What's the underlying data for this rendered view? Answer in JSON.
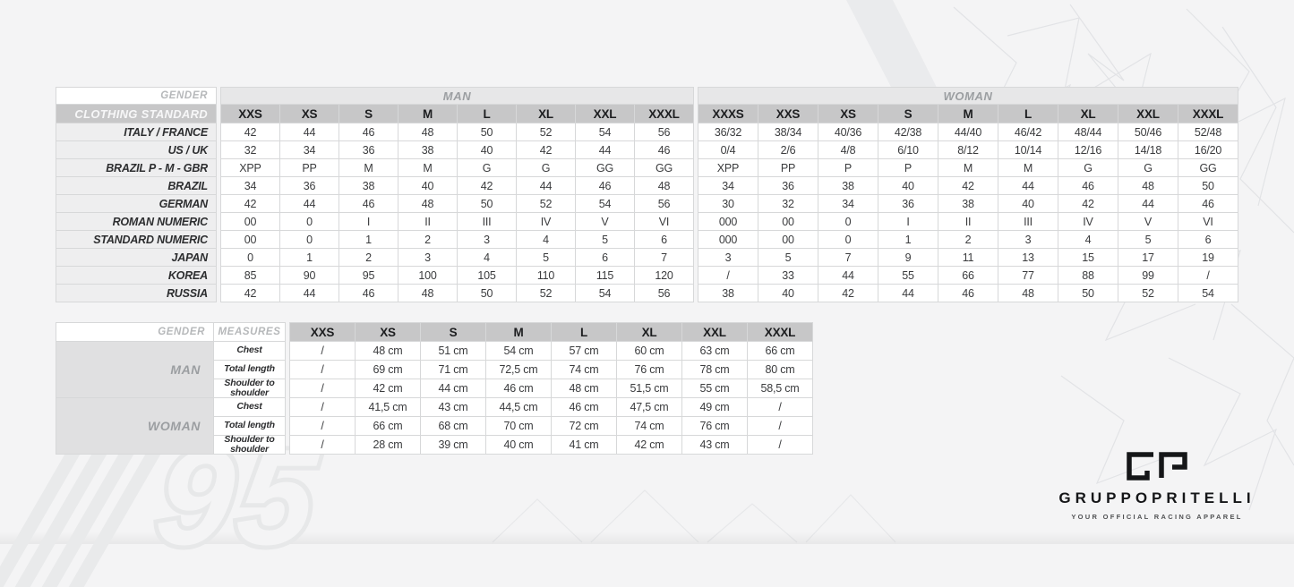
{
  "size_chart": {
    "gender_label": "GENDER",
    "standard_label": "CLOTHING STANDARD",
    "man": {
      "label": "MAN",
      "sizes": [
        "XXS",
        "XS",
        "S",
        "M",
        "L",
        "XL",
        "XXL",
        "XXXL"
      ]
    },
    "woman": {
      "label": "WOMAN",
      "sizes": [
        "XXXS",
        "XXS",
        "XS",
        "S",
        "M",
        "L",
        "XL",
        "XXL",
        "XXXL"
      ]
    },
    "rows": [
      {
        "label": "ITALY / FRANCE",
        "man": [
          "42",
          "44",
          "46",
          "48",
          "50",
          "52",
          "54",
          "56"
        ],
        "woman": [
          "36/32",
          "38/34",
          "40/36",
          "42/38",
          "44/40",
          "46/42",
          "48/44",
          "50/46",
          "52/48"
        ]
      },
      {
        "label": "US / UK",
        "man": [
          "32",
          "34",
          "36",
          "38",
          "40",
          "42",
          "44",
          "46"
        ],
        "woman": [
          "0/4",
          "2/6",
          "4/8",
          "6/10",
          "8/12",
          "10/14",
          "12/16",
          "14/18",
          "16/20"
        ]
      },
      {
        "label": "BRAZIL P - M - GBR",
        "man": [
          "XPP",
          "PP",
          "M",
          "M",
          "G",
          "G",
          "GG",
          "GG"
        ],
        "woman": [
          "XPP",
          "PP",
          "P",
          "P",
          "M",
          "M",
          "G",
          "G",
          "GG"
        ]
      },
      {
        "label": "BRAZIL",
        "man": [
          "34",
          "36",
          "38",
          "40",
          "42",
          "44",
          "46",
          "48"
        ],
        "woman": [
          "34",
          "36",
          "38",
          "40",
          "42",
          "44",
          "46",
          "48",
          "50"
        ]
      },
      {
        "label": "GERMAN",
        "man": [
          "42",
          "44",
          "46",
          "48",
          "50",
          "52",
          "54",
          "56"
        ],
        "woman": [
          "30",
          "32",
          "34",
          "36",
          "38",
          "40",
          "42",
          "44",
          "46"
        ]
      },
      {
        "label": "ROMAN NUMERIC",
        "man": [
          "00",
          "0",
          "I",
          "II",
          "III",
          "IV",
          "V",
          "VI"
        ],
        "woman": [
          "000",
          "00",
          "0",
          "I",
          "II",
          "III",
          "IV",
          "V",
          "VI"
        ]
      },
      {
        "label": "STANDARD NUMERIC",
        "man": [
          "00",
          "0",
          "1",
          "2",
          "3",
          "4",
          "5",
          "6"
        ],
        "woman": [
          "000",
          "00",
          "0",
          "1",
          "2",
          "3",
          "4",
          "5",
          "6"
        ]
      },
      {
        "label": "JAPAN",
        "man": [
          "0",
          "1",
          "2",
          "3",
          "4",
          "5",
          "6",
          "7"
        ],
        "woman": [
          "3",
          "5",
          "7",
          "9",
          "11",
          "13",
          "15",
          "17",
          "19"
        ]
      },
      {
        "label": "KOREA",
        "man": [
          "85",
          "90",
          "95",
          "100",
          "105",
          "110",
          "115",
          "120"
        ],
        "woman": [
          "/",
          "33",
          "44",
          "55",
          "66",
          "77",
          "88",
          "99",
          "/"
        ]
      },
      {
        "label": "RUSSIA",
        "man": [
          "42",
          "44",
          "46",
          "48",
          "50",
          "52",
          "54",
          "56"
        ],
        "woman": [
          "38",
          "40",
          "42",
          "44",
          "46",
          "48",
          "50",
          "52",
          "54"
        ]
      }
    ]
  },
  "measures_chart": {
    "gender_label": "GENDER",
    "measures_label": "MEASURES",
    "sizes": [
      "XXS",
      "XS",
      "S",
      "M",
      "L",
      "XL",
      "XXL",
      "XXXL"
    ],
    "sections": [
      {
        "gender": "MAN",
        "rows": [
          {
            "label": "Chest",
            "values": [
              "/",
              "48 cm",
              "51 cm",
              "54 cm",
              "57 cm",
              "60 cm",
              "63 cm",
              "66 cm"
            ]
          },
          {
            "label": "Total length",
            "values": [
              "/",
              "69 cm",
              "71 cm",
              "72,5 cm",
              "74 cm",
              "76 cm",
              "78 cm",
              "80 cm"
            ]
          },
          {
            "label": "Shoulder to shoulder",
            "values": [
              "/",
              "42 cm",
              "44 cm",
              "46 cm",
              "48 cm",
              "51,5 cm",
              "55 cm",
              "58,5 cm"
            ]
          }
        ]
      },
      {
        "gender": "WOMAN",
        "rows": [
          {
            "label": "Chest",
            "values": [
              "/",
              "41,5 cm",
              "43 cm",
              "44,5 cm",
              "46 cm",
              "47,5 cm",
              "49 cm",
              "/"
            ]
          },
          {
            "label": "Total length",
            "values": [
              "/",
              "66 cm",
              "68 cm",
              "70 cm",
              "72 cm",
              "74 cm",
              "76 cm",
              "/"
            ]
          },
          {
            "label": "Shoulder to shoulder",
            "values": [
              "/",
              "28 cm",
              "39 cm",
              "40 cm",
              "41 cm",
              "42 cm",
              "43 cm",
              "/"
            ]
          }
        ]
      }
    ]
  },
  "branding": {
    "name": "GRUPPOPRITELLI",
    "tagline": "YOUR OFFICIAL RACING APPAREL",
    "monogram": "GP",
    "watermark": "95"
  },
  "colors": {
    "page_bg": "#f4f4f5",
    "header_gray": "#c7c7c8",
    "band_gray": "#e7e7e8",
    "label_gray": "#eeeeef",
    "logo_black": "#151618"
  }
}
